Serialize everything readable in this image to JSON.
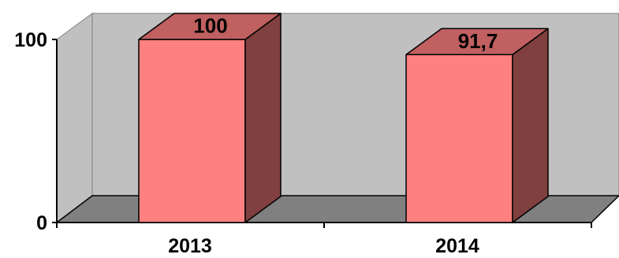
{
  "chart_data": {
    "type": "bar",
    "categories": [
      "2013",
      "2014"
    ],
    "values": [
      100,
      91.7
    ],
    "data_labels": [
      "100",
      "91,7"
    ],
    "y_tick_labels": [
      "0",
      "100"
    ],
    "ylim": [
      0,
      100
    ],
    "grid": false,
    "legend": "none",
    "three_d": true,
    "colors": {
      "bar_front": "#ff8080",
      "bar_side": "#80403f",
      "bar_top": "#c06060",
      "back_wall": "#c0c0c0",
      "floor": "#808080",
      "outline": "#000000"
    }
  }
}
